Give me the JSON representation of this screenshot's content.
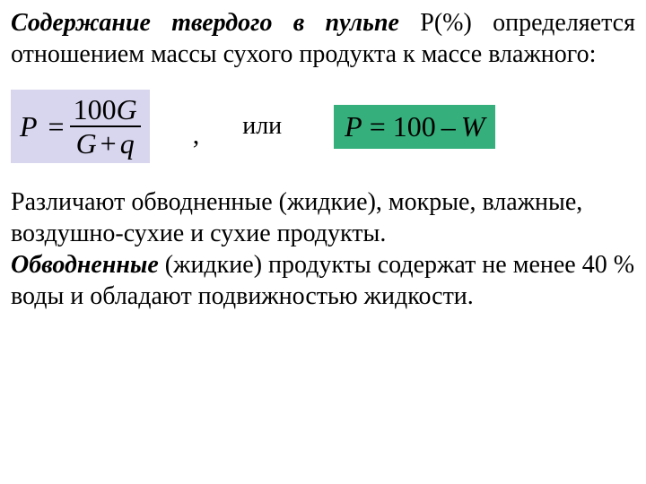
{
  "intro": {
    "term": "Содержание твердого в пульпе",
    "after_term": " Р(%) определяется отношением массы сухого продукта к массе влажного:"
  },
  "formula1": {
    "background": "#d8d6ef",
    "lhs": "P",
    "eq": "=",
    "num_const": "100",
    "num_var": "G",
    "den_left": "G",
    "den_plus": "+",
    "den_right": "q"
  },
  "separator": {
    "comma": ",",
    "or": "или"
  },
  "formula2": {
    "background": "#35b07c",
    "P": "P",
    "eq": "=",
    "hundred": "100",
    "minus": "–",
    "W": "W"
  },
  "body": {
    "p1": "Различают обводненные (жидкие), мокрые, влажные, воздушно-сухие и сухие продукты.",
    "term2": "Обводненные",
    "p2": " (жидкие) продукты содержат не менее 40 % воды и обладают подвижностью жидкости."
  }
}
